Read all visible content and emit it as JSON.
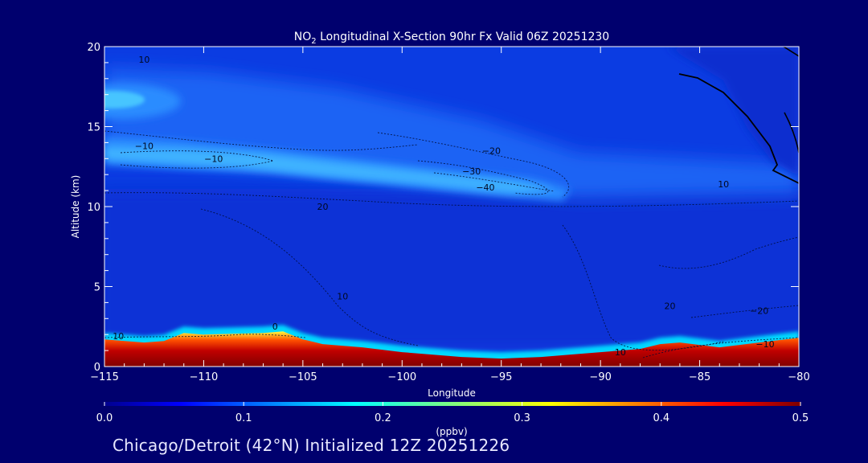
{
  "chart_data": {
    "type": "heatmap",
    "title": "NO2 Longitudinal X-Section 90hr  Fx Valid 06Z 20251230",
    "title_parts": {
      "pre": "NO",
      "sub": "2",
      "post": " Longitudinal X-Section 90hr  Fx Valid 06Z 20251230"
    },
    "xlabel": "Longitude",
    "ylabel": "Altitude (km)",
    "xlim": [
      -115,
      -80
    ],
    "ylim": [
      0,
      20
    ],
    "x_ticks": [
      -115,
      -110,
      -105,
      -100,
      -95,
      -90,
      -85,
      -80
    ],
    "x_tick_labels": [
      "−115",
      "−110",
      "−105",
      "−100",
      "−95",
      "−90",
      "−85",
      "−80"
    ],
    "y_ticks": [
      0,
      5,
      10,
      15,
      20
    ],
    "y_tick_labels": [
      "0",
      "5",
      "10",
      "15",
      "20"
    ],
    "colorbar": {
      "label": "(ppbv)",
      "range": [
        0.0,
        0.5
      ],
      "ticks": [
        0.0,
        0.1,
        0.2,
        0.3,
        0.4,
        0.5
      ],
      "tick_labels": [
        "0.0",
        "0.1",
        "0.2",
        "0.3",
        "0.4",
        "0.5"
      ],
      "colormap": "jet"
    },
    "terrain_km": [
      {
        "lon": -115,
        "alt": 1.7
      },
      {
        "lon": -113,
        "alt": 1.5
      },
      {
        "lon": -112,
        "alt": 1.6
      },
      {
        "lon": -111,
        "alt": 2.1
      },
      {
        "lon": -110,
        "alt": 2.0
      },
      {
        "lon": -107,
        "alt": 2.1
      },
      {
        "lon": -106,
        "alt": 2.2
      },
      {
        "lon": -105,
        "alt": 1.7
      },
      {
        "lon": -104,
        "alt": 1.4
      },
      {
        "lon": -102,
        "alt": 1.2
      },
      {
        "lon": -100,
        "alt": 0.9
      },
      {
        "lon": -97,
        "alt": 0.6
      },
      {
        "lon": -95,
        "alt": 0.5
      },
      {
        "lon": -93,
        "alt": 0.6
      },
      {
        "lon": -90,
        "alt": 0.9
      },
      {
        "lon": -88,
        "alt": 1.1
      },
      {
        "lon": -87,
        "alt": 1.4
      },
      {
        "lon": -86,
        "alt": 1.5
      },
      {
        "lon": -84,
        "alt": 1.2
      },
      {
        "lon": -82,
        "alt": 1.5
      },
      {
        "lon": -80,
        "alt": 1.8
      }
    ],
    "no2_layers_ppbv": [
      {
        "name": "surface",
        "value": 0.5
      },
      {
        "name": "upper-plume",
        "lon_range": [
          -115,
          -92
        ],
        "alt_km": [
          12,
          14
        ],
        "value": 0.12
      },
      {
        "name": "upper-core",
        "lon_range": [
          -115,
          -113
        ],
        "alt_km": [
          16,
          18
        ],
        "value": 0.14
      },
      {
        "name": "background",
        "value": 0.04
      }
    ],
    "contour_labels": [
      {
        "text": "10",
        "lon": -113,
        "alt": 19.0
      },
      {
        "text": "−10",
        "lon": -113.0,
        "alt": 13.6
      },
      {
        "text": "−10",
        "lon": -109.5,
        "alt": 12.8
      },
      {
        "text": "−20",
        "lon": -95.5,
        "alt": 13.3
      },
      {
        "text": "−30",
        "lon": -96.5,
        "alt": 12.0
      },
      {
        "text": "−40",
        "lon": -95.8,
        "alt": 11.0
      },
      {
        "text": "20",
        "lon": -104.0,
        "alt": 9.8
      },
      {
        "text": "10",
        "lon": -83.8,
        "alt": 11.2
      },
      {
        "text": "10",
        "lon": -103.0,
        "alt": 4.2
      },
      {
        "text": "20",
        "lon": -86.5,
        "alt": 3.6
      },
      {
        "text": "−20",
        "lon": -82.0,
        "alt": 3.3
      },
      {
        "text": "10",
        "lon": -114.3,
        "alt": 1.7
      },
      {
        "text": "0",
        "lon": -106.4,
        "alt": 2.3
      },
      {
        "text": "10",
        "lon": -89.0,
        "alt": 0.7
      },
      {
        "text": "−10",
        "lon": -81.7,
        "alt": 1.2
      }
    ]
  },
  "footer": "Chicago/Detroit (42°N) Initialized 12Z 20251226",
  "colors": {
    "background": "#00006e",
    "text": "#ffffff",
    "surface_max": "#800000"
  }
}
